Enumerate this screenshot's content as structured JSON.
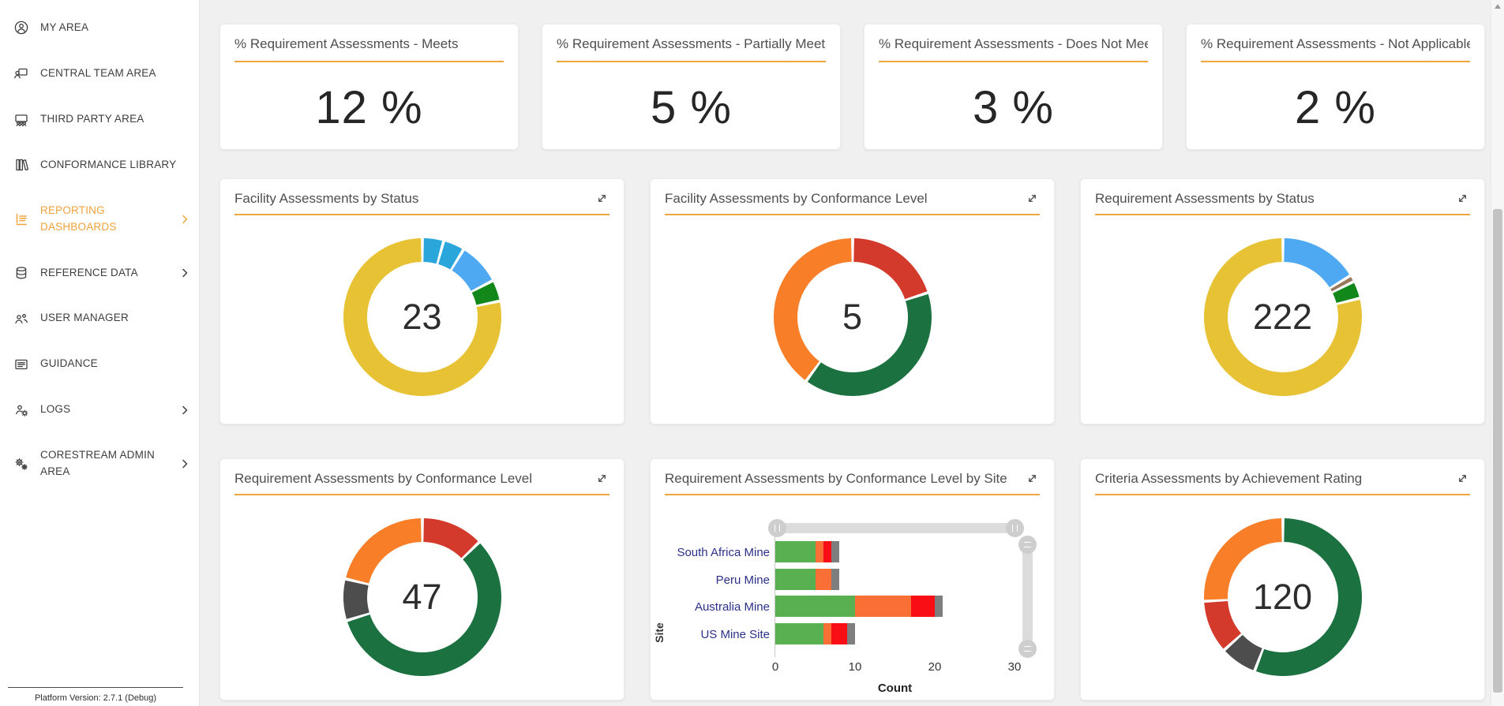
{
  "colors": {
    "accent_underline": "#EDA73E",
    "sidebar_active": "#F0A23B",
    "page_background": "#f0f0f1",
    "card_background": "#ffffff"
  },
  "sidebar": {
    "items": [
      {
        "label": "MY AREA",
        "icon": "person-circle-icon",
        "active": false,
        "chevron": false
      },
      {
        "label": "CENTRAL TEAM AREA",
        "icon": "person-board-icon",
        "active": false,
        "chevron": false
      },
      {
        "label": "THIRD PARTY AREA",
        "icon": "people-group-icon",
        "active": false,
        "chevron": false
      },
      {
        "label": "CONFORMANCE LIBRARY",
        "icon": "library-books-icon",
        "active": false,
        "chevron": false
      },
      {
        "label": "REPORTING DASHBOARDS",
        "icon": "report-chart-icon",
        "active": true,
        "chevron": true
      },
      {
        "label": "REFERENCE DATA",
        "icon": "database-icon",
        "active": false,
        "chevron": true
      },
      {
        "label": "USER MANAGER",
        "icon": "users-icon",
        "active": false,
        "chevron": false
      },
      {
        "label": "GUIDANCE",
        "icon": "guidance-card-icon",
        "active": false,
        "chevron": false
      },
      {
        "label": "LOGS",
        "icon": "person-gear-icon",
        "active": false,
        "chevron": true
      },
      {
        "label": "CORESTREAM ADMIN AREA",
        "icon": "gears-icon",
        "active": false,
        "chevron": true
      }
    ],
    "footer": "Platform Version: 2.7.1 (Debug)"
  },
  "kpis": [
    {
      "title": "% Requirement Assessments - Meets",
      "value": "12 %"
    },
    {
      "title": "% Requirement Assessments - Partially Meets",
      "value": "5 %"
    },
    {
      "title": "% Requirement Assessments - Does Not Meet",
      "value": "3 %"
    },
    {
      "title": "% Requirement Assessments - Not Applicable",
      "value": "2 %"
    }
  ],
  "chart_data": [
    {
      "type": "pie",
      "subtype": "donut",
      "title": "Facility Assessments by Status",
      "center_label": "23",
      "total": 23,
      "segments": [
        {
          "value": 1,
          "color": "#2AA6DB"
        },
        {
          "value": 1,
          "color": "#2AA6DB"
        },
        {
          "value": 2,
          "color": "#4FA8F2"
        },
        {
          "value": 1,
          "color": "#12881B"
        },
        {
          "value": 18,
          "color": "#E7C234"
        }
      ]
    },
    {
      "type": "pie",
      "subtype": "donut",
      "title": "Facility Assessments by Conformance Level",
      "center_label": "5",
      "total": 5,
      "segments": [
        {
          "value": 1,
          "color": "#D43A2C"
        },
        {
          "value": 2,
          "color": "#1B7240"
        },
        {
          "value": 2,
          "color": "#F87E28"
        }
      ]
    },
    {
      "type": "pie",
      "subtype": "donut",
      "title": "Requirement Assessments by Status",
      "center_label": "222",
      "total": 222,
      "segments": [
        {
          "value": 36,
          "color": "#4FA8F2"
        },
        {
          "value": 3,
          "color": "#98795B"
        },
        {
          "value": 8,
          "color": "#12881B"
        },
        {
          "value": 175,
          "color": "#E7C234"
        }
      ]
    },
    {
      "type": "pie",
      "subtype": "donut",
      "title": "Requirement Assessments by Conformance Level",
      "center_label": "47",
      "total": 47,
      "segments": [
        {
          "value": 6,
          "color": "#D43A2C"
        },
        {
          "value": 27,
          "color": "#1B7240"
        },
        {
          "value": 4,
          "color": "#4D4D4D"
        },
        {
          "value": 10,
          "color": "#F87E28"
        }
      ]
    },
    {
      "type": "bar",
      "subtype": "horizontal-stacked",
      "title": "Requirement Assessments by Conformance Level by Site",
      "xlabel": "Count",
      "ylabel": "Site",
      "xlim": [
        0,
        30
      ],
      "x_ticks": [
        0,
        10,
        20,
        30
      ],
      "categories": [
        "South Africa Mine",
        "Peru Mine",
        "Australia Mine",
        "US Mine Site"
      ],
      "series": [
        {
          "name": "green",
          "color": "#58B051",
          "values": [
            5,
            5,
            10,
            6
          ]
        },
        {
          "name": "orange",
          "color": "#F96F35",
          "values": [
            1,
            2,
            7,
            1
          ]
        },
        {
          "name": "red",
          "color": "#FA0E16",
          "values": [
            1,
            0,
            3,
            2
          ]
        },
        {
          "name": "gray",
          "color": "#7E7E7E",
          "values": [
            1,
            1,
            1,
            1
          ]
        }
      ]
    },
    {
      "type": "pie",
      "subtype": "donut",
      "title": "Criteria Assessments by Achievement Rating",
      "center_label": "120",
      "total": 120,
      "segments": [
        {
          "value": 67,
          "color": "#1B7240"
        },
        {
          "value": 9,
          "color": "#4D4D4D"
        },
        {
          "value": 13,
          "color": "#D43A2C"
        },
        {
          "value": 31,
          "color": "#F87E28"
        }
      ]
    }
  ]
}
